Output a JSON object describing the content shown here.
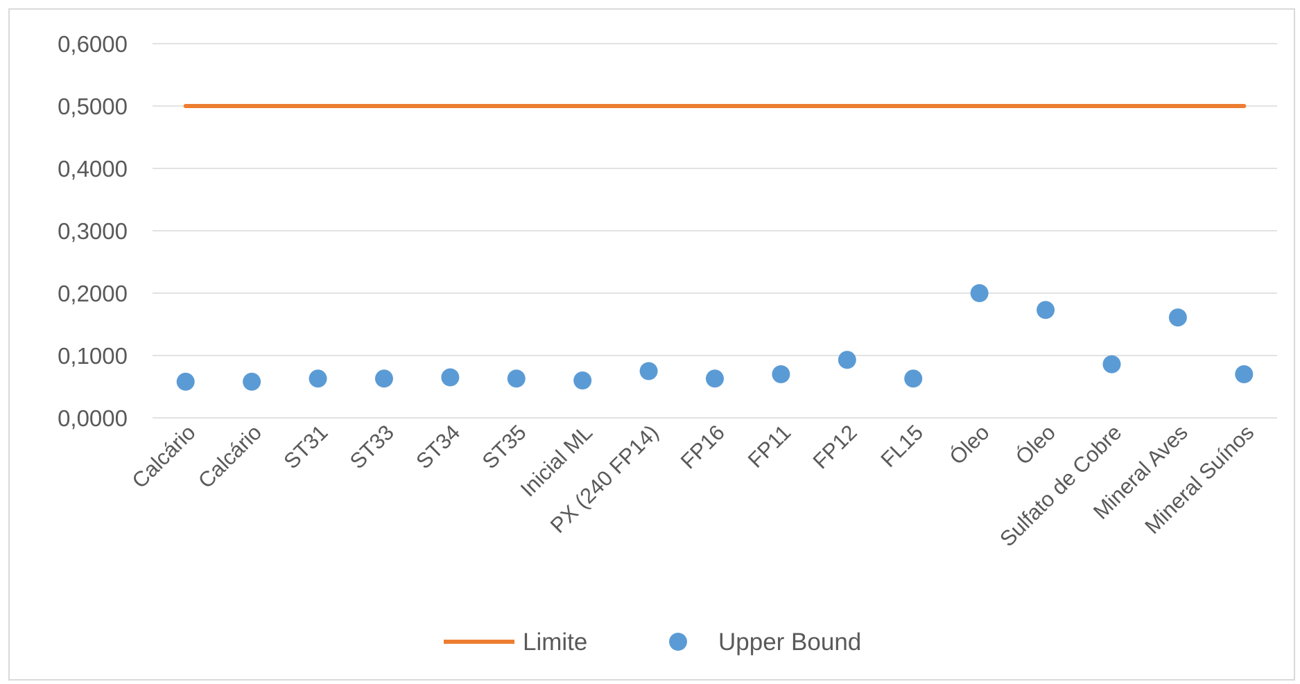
{
  "chart_data": {
    "type": "line",
    "categories": [
      "Calcário",
      "Calcário",
      "ST31",
      "ST33",
      "ST34",
      "ST35",
      "Inicial ML",
      "PX (240 FP14)",
      "FP16",
      "FP11",
      "FP12",
      "FL15",
      "Óleo",
      "Óleo",
      "Sulfato de Cobre",
      "Mineral Aves",
      "Mineral Suínos"
    ],
    "y_ticks": [
      "0,0000",
      "0,1000",
      "0,2000",
      "0,3000",
      "0,4000",
      "0,5000",
      "0,6000"
    ],
    "ylim": [
      0,
      0.6
    ],
    "grid": true,
    "legend_position": "bottom",
    "series": [
      {
        "name": "Limite",
        "kind": "line",
        "color": "#ED7D31",
        "values": [
          0.5,
          0.5,
          0.5,
          0.5,
          0.5,
          0.5,
          0.5,
          0.5,
          0.5,
          0.5,
          0.5,
          0.5,
          0.5,
          0.5,
          0.5,
          0.5,
          0.5
        ]
      },
      {
        "name": "Upper Bound",
        "kind": "scatter",
        "color": "#5B9BD5",
        "values": [
          0.058,
          0.058,
          0.063,
          0.063,
          0.065,
          0.063,
          0.06,
          0.075,
          0.063,
          0.07,
          0.093,
          0.063,
          0.2,
          0.173,
          0.086,
          0.161,
          0.07
        ]
      }
    ]
  }
}
